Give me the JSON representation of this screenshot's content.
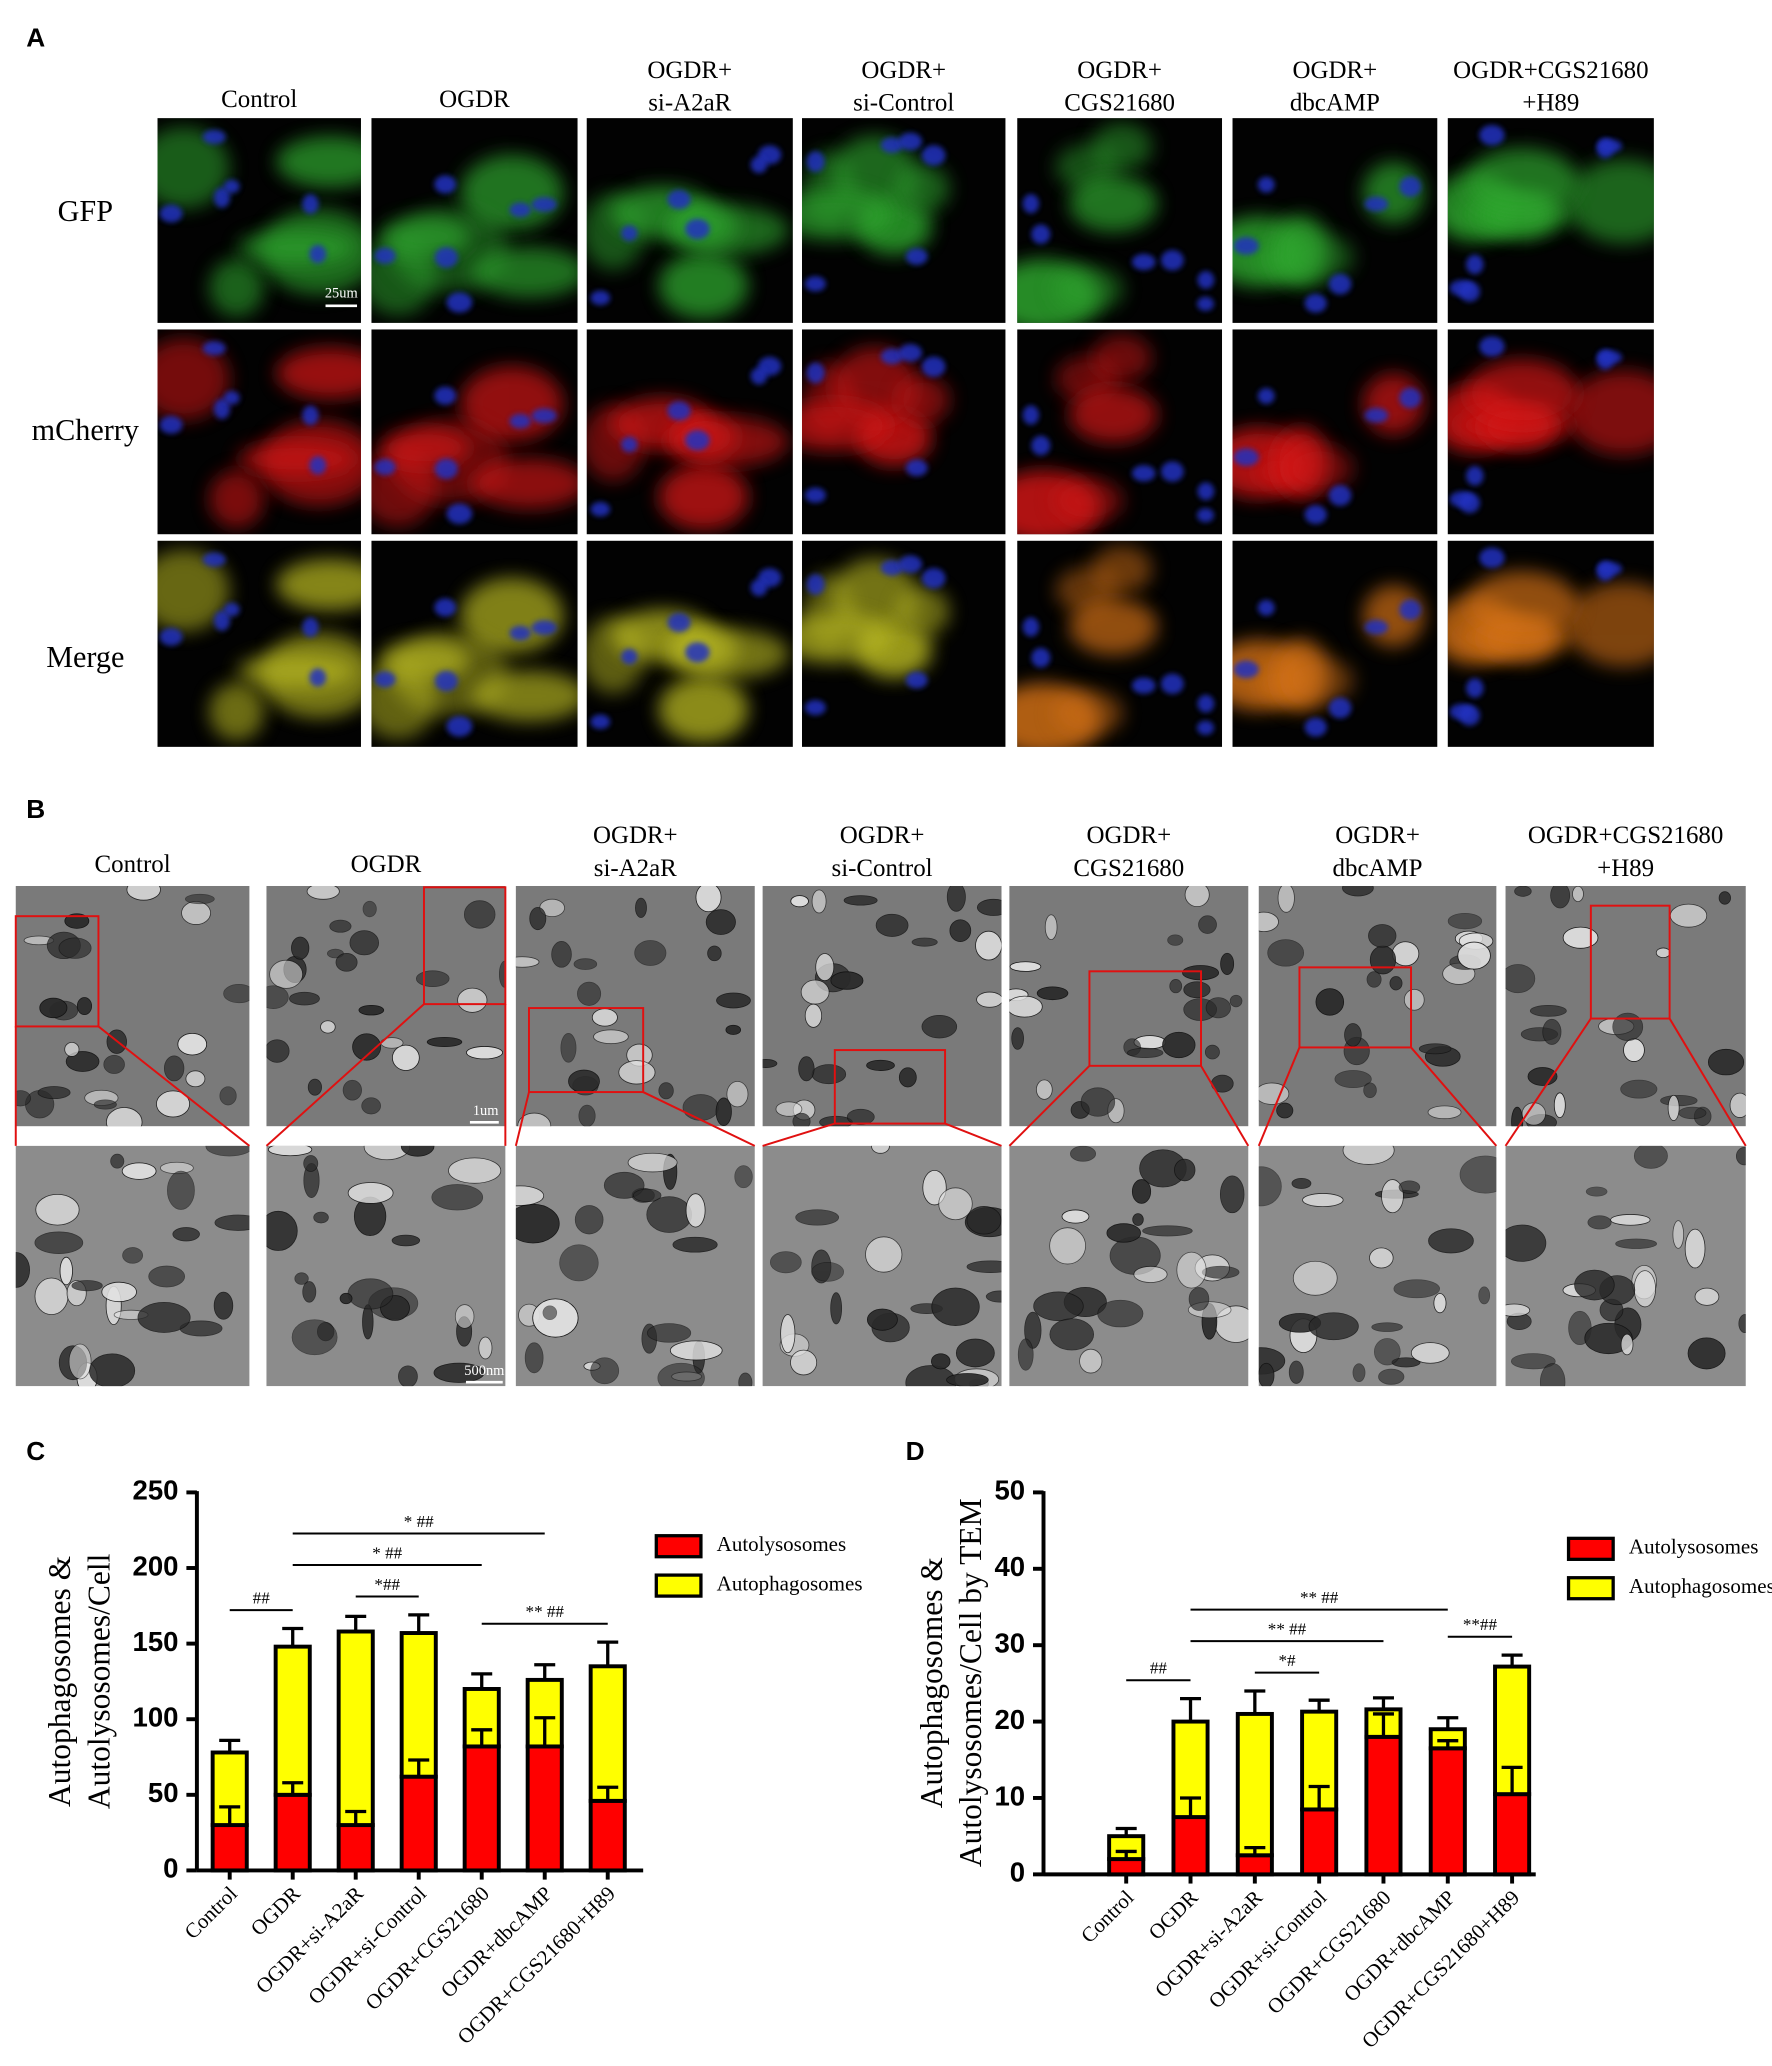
{
  "panel_a": {
    "label": "A",
    "columns": [
      [
        "Control"
      ],
      [
        "OGDR"
      ],
      [
        "OGDR+",
        "si-A2aR"
      ],
      [
        "OGDR+",
        "si-Control"
      ],
      [
        "OGDR+",
        "CGS21680"
      ],
      [
        "OGDR+",
        "dbcAMP"
      ],
      [
        "OGDR+CGS21680",
        "+H89"
      ]
    ],
    "rows": [
      "GFP",
      "mCherry",
      "Merge"
    ],
    "scale_bar": "25um"
  },
  "panel_b": {
    "label": "B",
    "columns": [
      [
        "Control"
      ],
      [
        "OGDR"
      ],
      [
        "OGDR+",
        "si-A2aR"
      ],
      [
        "OGDR+",
        "si-Control"
      ],
      [
        "OGDR+",
        "CGS21680"
      ],
      [
        "OGDR+",
        "dbcAMP"
      ],
      [
        "OGDR+CGS21680",
        "+H89"
      ]
    ],
    "scale_bars": [
      "1um",
      "500nm"
    ]
  },
  "chart_data": [
    {
      "type": "bar",
      "stacked": true,
      "panel_label": "C",
      "ylabel": [
        "Autophagosomes &",
        "Autolysosomes/Cell"
      ],
      "categories": [
        "Control",
        "OGDR",
        "OGDR+si-A2aR",
        "OGDR+si-Control",
        "OGDR+CGS21680",
        "OGDR+dbcAMP",
        "OGDR+CGS21680+H89"
      ],
      "series": [
        {
          "name": "Autolysosomes",
          "color": "#ff0000",
          "values": [
            30,
            50,
            30,
            62,
            82,
            82,
            46
          ],
          "errors": [
            12,
            8,
            9,
            11,
            11,
            19,
            9
          ]
        },
        {
          "name": "Autophagosomes",
          "color": "#ffff00",
          "values": [
            48,
            98,
            128,
            95,
            38,
            44,
            89
          ],
          "errors": [
            8,
            12,
            10,
            12,
            10,
            10,
            16
          ]
        }
      ],
      "ylim": [
        0,
        250
      ],
      "yticks": [
        0,
        50,
        100,
        150,
        200,
        250
      ],
      "legend": "right",
      "annotations": [
        {
          "text": "##",
          "from": "Control",
          "to": "OGDR"
        },
        {
          "text": "*##",
          "from": "OGDR+si-A2aR",
          "to": "OGDR+si-Control"
        },
        {
          "text": "** ##",
          "from": "OGDR+CGS21680",
          "to": "OGDR+CGS21680+H89"
        },
        {
          "text": "* ##",
          "from": "OGDR",
          "to": "OGDR+CGS21680"
        },
        {
          "text": "* ##",
          "from": "OGDR",
          "to": "OGDR+dbcAMP"
        }
      ]
    },
    {
      "type": "bar",
      "stacked": true,
      "panel_label": "D",
      "ylabel": [
        "Autophagosomes &",
        "Autolysosomes/Cell by TEM"
      ],
      "categories": [
        "Control",
        "OGDR",
        "OGDR+si-A2aR",
        "OGDR+si-Control",
        "OGDR+CGS21680",
        "OGDR+dbcAMP",
        "OGDR+CGS21680+H89"
      ],
      "series": [
        {
          "name": "Autolysosomes",
          "color": "#ff0000",
          "values": [
            2,
            7.5,
            2.5,
            8.5,
            18,
            16.5,
            10.5
          ],
          "errors": [
            1,
            2.5,
            1,
            3,
            3,
            1,
            3.5
          ]
        },
        {
          "name": "Autophagosomes",
          "color": "#ffff00",
          "values": [
            3,
            12.5,
            18.5,
            12.8,
            3.6,
            2.5,
            16.7
          ],
          "errors": [
            1,
            3,
            3,
            1.5,
            1.5,
            1.5,
            1.5
          ]
        }
      ],
      "ylim": [
        0,
        50
      ],
      "yticks": [
        0,
        10,
        20,
        30,
        40,
        50
      ],
      "legend": "right",
      "annotations": [
        {
          "text": "##",
          "from": "Control",
          "to": "OGDR"
        },
        {
          "text": "*#",
          "from": "OGDR+si-A2aR",
          "to": "OGDR+si-Control"
        },
        {
          "text": "** ##",
          "from": "OGDR",
          "to": "OGDR+CGS21680"
        },
        {
          "text": "** ##",
          "from": "OGDR",
          "to": "OGDR+dbcAMP"
        },
        {
          "text": "**##",
          "from": "OGDR+dbcAMP",
          "to": "OGDR+CGS21680+H89"
        }
      ]
    }
  ]
}
